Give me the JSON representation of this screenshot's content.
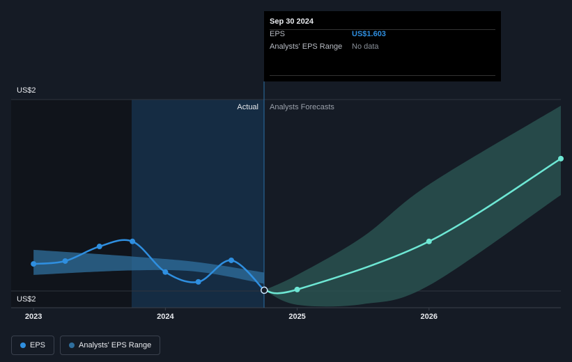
{
  "chart_data": {
    "type": "line",
    "xlim": [
      2022.83,
      2027.0
    ],
    "xticks": [
      2023,
      2024,
      2025,
      2026
    ],
    "ylim": [
      1.53,
      2.4
    ],
    "yticks": [
      {
        "value": 2.4,
        "label": "US$2"
      },
      {
        "value": 1.6,
        "label": "US$2"
      }
    ],
    "grid": true,
    "divider_labels": [
      "Actual",
      "Analysts Forecasts"
    ],
    "series": [
      {
        "name": "EPS",
        "color": "#2f8fe0",
        "x": [
          2023.0,
          2023.24,
          2023.5,
          2023.75,
          2024.0,
          2024.25,
          2024.5,
          2024.75
        ],
        "values": [
          1.713,
          1.725,
          1.786,
          1.807,
          1.679,
          1.638,
          1.728,
          1.603
        ]
      }
    ],
    "forecast": {
      "color": "#6ee7d4",
      "x": [
        2024.75,
        2025.0,
        2026.0,
        2027.0
      ],
      "values": [
        1.603,
        1.606,
        1.807,
        2.153
      ]
    },
    "ranges": [
      {
        "name": "Analysts' EPS Range",
        "color": "#2f6f9e",
        "x": [
          2023.0,
          2023.75,
          2024.25,
          2024.75
        ],
        "high": [
          1.772,
          1.744,
          1.72,
          1.677
        ],
        "low": [
          1.667,
          1.686,
          1.68,
          1.63
        ]
      }
    ],
    "forecast_range": {
      "color": "#2c5a56",
      "x": [
        2024.75,
        2025.0,
        2025.5,
        2026.0,
        2027.0
      ],
      "high": [
        1.603,
        1.667,
        1.827,
        2.045,
        2.374
      ],
      "low": [
        1.603,
        1.542,
        1.545,
        1.623,
        2.001
      ]
    }
  },
  "tooltip": {
    "date": "Sep 30 2024",
    "rows": [
      [
        "EPS",
        "US$1.603"
      ],
      [
        "Analysts' EPS Range",
        "No data"
      ]
    ]
  }
}
